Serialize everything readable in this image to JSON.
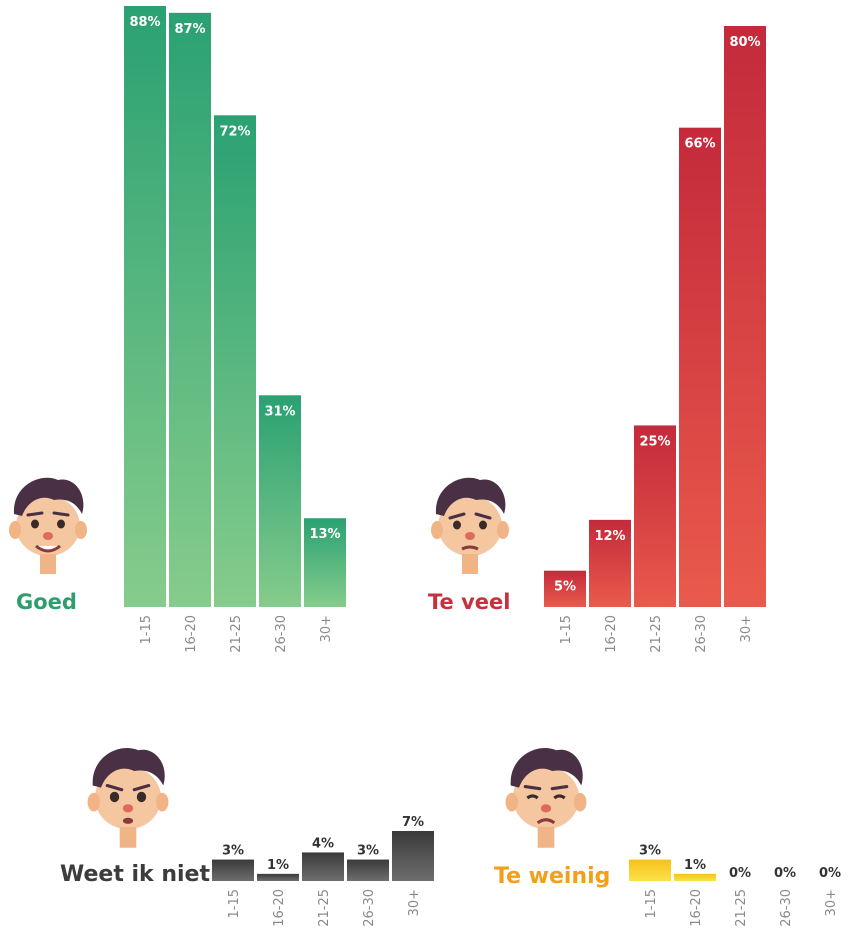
{
  "panels": [
    {
      "label": "Goed",
      "color": "#2e9e6e",
      "face": "smiling-face-icon"
    },
    {
      "label": "Te veel",
      "color": "#c8303e",
      "face": "annoyed-face-icon"
    },
    {
      "label": "Weet ik niet",
      "color": "#3c3c3c",
      "face": "worried-face-icon"
    },
    {
      "label": "Te weinig",
      "color": "#f0a01a",
      "face": "sad-face-icon"
    }
  ],
  "chart_data": [
    {
      "type": "bar",
      "categories": [
        "1-15",
        "16-20",
        "21-25",
        "26-30",
        "30+"
      ],
      "values": [
        88,
        87,
        72,
        31,
        13
      ],
      "data_labels": [
        "88%",
        "87%",
        "72%",
        "31%",
        "13%"
      ],
      "series": [
        {
          "name": "Goed",
          "values": [
            88,
            87,
            72,
            31,
            13
          ]
        }
      ],
      "ylim": [
        0,
        88
      ],
      "colors": {
        "top": "#2aa172",
        "bottom": "#86cc8c"
      }
    },
    {
      "type": "bar",
      "categories": [
        "1-15",
        "16-20",
        "21-25",
        "26-30",
        "30+"
      ],
      "values": [
        5,
        12,
        25,
        66,
        80
      ],
      "data_labels": [
        "5%",
        "12%",
        "25%",
        "66%",
        "80%"
      ],
      "series": [
        {
          "name": "Te veel",
          "values": [
            5,
            12,
            25,
            66,
            80
          ]
        }
      ],
      "ylim": [
        0,
        80
      ],
      "colors": {
        "top": "#c42a3b",
        "bottom": "#ea5a4c"
      }
    },
    {
      "type": "bar",
      "categories": [
        "1-15",
        "16-20",
        "21-25",
        "26-30",
        "30+"
      ],
      "values": [
        3,
        1,
        4,
        3,
        7
      ],
      "data_labels": [
        "3%",
        "1%",
        "4%",
        "3%",
        "7%"
      ],
      "series": [
        {
          "name": "Weet ik niet",
          "values": [
            3,
            1,
            4,
            3,
            7
          ]
        }
      ],
      "ylim": [
        0,
        7
      ],
      "colors": {
        "top": "#3a3a3a",
        "bottom": "#6e6e6e"
      }
    },
    {
      "type": "bar",
      "categories": [
        "1-15",
        "16-20",
        "21-25",
        "26-30",
        "30+"
      ],
      "values": [
        3,
        1,
        0,
        0,
        0
      ],
      "data_labels": [
        "3%",
        "1%",
        "0%",
        "0%",
        "0%"
      ],
      "series": [
        {
          "name": "Te weinig",
          "values": [
            3,
            1,
            0,
            0,
            0
          ]
        }
      ],
      "ylim": [
        0,
        7
      ],
      "colors": {
        "top": "#f6c11a",
        "bottom": "#fbe24a"
      }
    }
  ]
}
